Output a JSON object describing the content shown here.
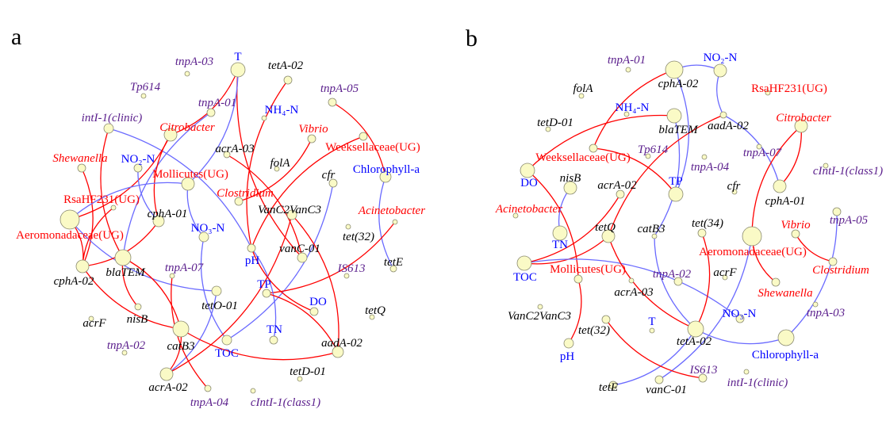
{
  "colors": {
    "taxon": "#ff0000",
    "env": "#0000ff",
    "mge": "#5a1e8c",
    "arg": "#000000",
    "positive_edge": "#ff0000",
    "negative_edge": "#6a6aff",
    "node_fill": "#fafac6"
  },
  "panels": [
    {
      "letter": "a",
      "nodes": [
        {
          "label": "T",
          "type": "env"
        },
        {
          "label": "tnpA-03",
          "type": "mge"
        },
        {
          "label": "tetA-02",
          "type": "arg"
        },
        {
          "label": "Tp614",
          "type": "mge"
        },
        {
          "label": "tnpA-05",
          "type": "mge"
        },
        {
          "label": "tnpA-01",
          "type": "mge"
        },
        {
          "label": "NH₄-N",
          "type": "env"
        },
        {
          "label": "intI-1(clinic)",
          "type": "mge"
        },
        {
          "label": "Citrobacter",
          "type": "taxon"
        },
        {
          "label": "Vibrio",
          "type": "taxon"
        },
        {
          "label": "Weeksellaceae(UG)",
          "type": "taxon"
        },
        {
          "label": "acrA-03",
          "type": "arg"
        },
        {
          "label": "folA",
          "type": "arg"
        },
        {
          "label": "Shewanella",
          "type": "taxon"
        },
        {
          "label": "NO₂-N",
          "type": "env"
        },
        {
          "label": "Chlorophyll-a",
          "type": "env"
        },
        {
          "label": "Mollicutes(UG)",
          "type": "taxon"
        },
        {
          "label": "cfr",
          "type": "arg"
        },
        {
          "label": "Clostridium",
          "type": "taxon"
        },
        {
          "label": "RsaHF231(UG)",
          "type": "taxon"
        },
        {
          "label": "VanC2VanC3",
          "type": "arg"
        },
        {
          "label": "Acinetobacter",
          "type": "taxon"
        },
        {
          "label": "cphA-01",
          "type": "arg"
        },
        {
          "label": "Aeromonadaceae(UG)",
          "type": "taxon"
        },
        {
          "label": "tet(32)",
          "type": "arg"
        },
        {
          "label": "NO₃-N",
          "type": "env"
        },
        {
          "label": "pH",
          "type": "env"
        },
        {
          "label": "vanC-01",
          "type": "arg"
        },
        {
          "label": "blaTEM",
          "type": "arg"
        },
        {
          "label": "cphA-02",
          "type": "arg"
        },
        {
          "label": "tetE",
          "type": "arg"
        },
        {
          "label": "IS613",
          "type": "mge"
        },
        {
          "label": "tnpA-07",
          "type": "mge"
        },
        {
          "label": "TP",
          "type": "env"
        },
        {
          "label": "tetO-01",
          "type": "arg"
        },
        {
          "label": "DO",
          "type": "env"
        },
        {
          "label": "acrF",
          "type": "arg"
        },
        {
          "label": "nisB",
          "type": "arg"
        },
        {
          "label": "tetQ",
          "type": "arg"
        },
        {
          "label": "catB3",
          "type": "arg"
        },
        {
          "label": "TN",
          "type": "env"
        },
        {
          "label": "tnpA-02",
          "type": "mge"
        },
        {
          "label": "TOC",
          "type": "env"
        },
        {
          "label": "aadA-02",
          "type": "arg"
        },
        {
          "label": "tetD-01",
          "type": "arg"
        },
        {
          "label": "acrA-02",
          "type": "arg"
        },
        {
          "label": "tnpA-04",
          "type": "mge"
        },
        {
          "label": "cIntI-1(class1)",
          "type": "mge"
        }
      ],
      "edges": [
        {
          "source": "T",
          "target": "Citrobacter",
          "sign": "positive"
        },
        {
          "source": "T",
          "target": "vanC-01",
          "sign": "positive"
        },
        {
          "source": "T",
          "target": "Mollicutes(UG)",
          "sign": "negative"
        },
        {
          "source": "tetA-02",
          "target": "pH",
          "sign": "positive"
        },
        {
          "source": "tnpA-05",
          "target": "Chlorophyll-a",
          "sign": "positive"
        },
        {
          "source": "tnpA-01",
          "target": "blaTEM",
          "sign": "negative"
        },
        {
          "source": "intI-1(clinic)",
          "target": "pH",
          "sign": "negative"
        },
        {
          "source": "intI-1(clinic)",
          "target": "blaTEM",
          "sign": "positive"
        },
        {
          "source": "Citrobacter",
          "target": "Aeromonadaceae(UG)",
          "sign": "positive"
        },
        {
          "source": "Citrobacter",
          "target": "cphA-01",
          "sign": "positive"
        },
        {
          "source": "Shewanella",
          "target": "cphA-02",
          "sign": "positive"
        },
        {
          "source": "NO₂-N",
          "target": "cphA-01",
          "sign": "negative"
        },
        {
          "source": "Aeromonadaceae(UG)",
          "target": "Mollicutes(UG)",
          "sign": "negative"
        },
        {
          "source": "Aeromonadaceae(UG)",
          "target": "tetO-01",
          "sign": "negative"
        },
        {
          "source": "tetO-01",
          "target": "acrA-02",
          "sign": "negative"
        },
        {
          "source": "NO₃-N",
          "target": "TOC",
          "sign": "negative"
        },
        {
          "source": "cfr",
          "target": "TOC",
          "sign": "negative"
        },
        {
          "source": "Mollicutes(UG)",
          "target": "NO₃-N",
          "sign": "negative"
        },
        {
          "source": "acrA-03",
          "target": "vanC-01",
          "sign": "positive"
        },
        {
          "source": "Clostridium",
          "target": "Vibrio",
          "sign": "positive"
        },
        {
          "source": "VanC2VanC3",
          "target": "aadA-02",
          "sign": "positive"
        },
        {
          "source": "Weeksellaceae(UG)",
          "target": "pH",
          "sign": "positive"
        },
        {
          "source": "VanC2VanC3",
          "target": "acrA-02",
          "sign": "positive"
        },
        {
          "source": "Chlorophyll-a",
          "target": "tetE",
          "sign": "negative"
        },
        {
          "source": "Acinetobacter",
          "target": "TP",
          "sign": "positive"
        },
        {
          "source": "cphA-02",
          "target": "catB3",
          "sign": "positive"
        },
        {
          "source": "blaTEM",
          "target": "catB3",
          "sign": "positive"
        },
        {
          "source": "blaTEM",
          "target": "nisB",
          "sign": "positive"
        },
        {
          "source": "Aeromonadaceae(UG)",
          "target": "cphA-02",
          "sign": "positive"
        },
        {
          "source": "RsaHF231(UG)",
          "target": "cphA-02",
          "sign": "positive"
        },
        {
          "source": "cphA-01",
          "target": "cphA-02",
          "sign": "positive"
        },
        {
          "source": "catB3",
          "target": "aadA-02",
          "sign": "positive"
        },
        {
          "source": "catB3",
          "target": "acrA-02",
          "sign": "positive"
        },
        {
          "source": "tnpA-07",
          "target": "tnpA-04",
          "sign": "positive"
        },
        {
          "source": "pH",
          "target": "TN",
          "sign": "negative"
        },
        {
          "source": "pH",
          "target": "DO",
          "sign": "positive"
        },
        {
          "source": "TP",
          "target": "aadA-02",
          "sign": "positive"
        }
      ]
    },
    {
      "letter": "b",
      "nodes": [
        {
          "label": "tnpA-01",
          "type": "mge"
        },
        {
          "label": "cphA-02",
          "type": "arg"
        },
        {
          "label": "NO₂-N",
          "type": "env"
        },
        {
          "label": "folA",
          "type": "arg"
        },
        {
          "label": "RsaHF231(UG)",
          "type": "taxon"
        },
        {
          "label": "NH₄-N",
          "type": "env"
        },
        {
          "label": "blaTEM",
          "type": "arg"
        },
        {
          "label": "aadA-02",
          "type": "arg"
        },
        {
          "label": "tetD-01",
          "type": "arg"
        },
        {
          "label": "Citrobacter",
          "type": "taxon"
        },
        {
          "label": "Weeksellaceae(UG)",
          "type": "taxon"
        },
        {
          "label": "tnpA-07",
          "type": "mge"
        },
        {
          "label": "Tp614",
          "type": "mge"
        },
        {
          "label": "tnpA-04",
          "type": "mge"
        },
        {
          "label": "cIntI-1(class1)",
          "type": "mge"
        },
        {
          "label": "DO",
          "type": "env"
        },
        {
          "label": "nisB",
          "type": "arg"
        },
        {
          "label": "acrA-02",
          "type": "arg"
        },
        {
          "label": "TP",
          "type": "env"
        },
        {
          "label": "cfr",
          "type": "arg"
        },
        {
          "label": "cphA-01",
          "type": "arg"
        },
        {
          "label": "Acinetobacter",
          "type": "taxon"
        },
        {
          "label": "tnpA-05",
          "type": "mge"
        },
        {
          "label": "tetQ",
          "type": "arg"
        },
        {
          "label": "catB3",
          "type": "arg"
        },
        {
          "label": "tet(34)",
          "type": "arg"
        },
        {
          "label": "Aeromonadaceae(UG)",
          "type": "taxon"
        },
        {
          "label": "Vibrio",
          "type": "taxon"
        },
        {
          "label": "TN",
          "type": "env"
        },
        {
          "label": "TOC",
          "type": "env"
        },
        {
          "label": "Mollicutes(UG)",
          "type": "taxon"
        },
        {
          "label": "Clostridium",
          "type": "taxon"
        },
        {
          "label": "tnpA-02",
          "type": "mge"
        },
        {
          "label": "acrA-03",
          "type": "arg"
        },
        {
          "label": "acrF",
          "type": "arg"
        },
        {
          "label": "Shewanella",
          "type": "taxon"
        },
        {
          "label": "VanC2VanC3",
          "type": "arg"
        },
        {
          "label": "tnpA-03",
          "type": "mge"
        },
        {
          "label": "tet(32)",
          "type": "arg"
        },
        {
          "label": "T",
          "type": "env"
        },
        {
          "label": "NO₃-N",
          "type": "env"
        },
        {
          "label": "tetA-02",
          "type": "arg"
        },
        {
          "label": "Chlorophyll-a",
          "type": "env"
        },
        {
          "label": "pH",
          "type": "env"
        },
        {
          "label": "IS613",
          "type": "mge"
        },
        {
          "label": "tetE",
          "type": "arg"
        },
        {
          "label": "vanC-01",
          "type": "arg"
        },
        {
          "label": "intI-1(clinic)",
          "type": "mge"
        }
      ],
      "edges": [
        {
          "source": "cphA-02",
          "target": "NO₂-N",
          "sign": "negative"
        },
        {
          "source": "NO₂-N",
          "target": "aadA-02",
          "sign": "negative"
        },
        {
          "source": "aadA-02",
          "target": "cphA-01",
          "sign": "negative"
        },
        {
          "source": "cphA-02",
          "target": "Weeksellaceae(UG)",
          "sign": "positive"
        },
        {
          "source": "cphA-02",
          "target": "TP",
          "sign": "negative"
        },
        {
          "source": "blaTEM",
          "target": "DO",
          "sign": "positive"
        },
        {
          "source": "blaTEM",
          "target": "catB3",
          "sign": "negative"
        },
        {
          "source": "catB3",
          "target": "tetA-02",
          "sign": "negative"
        },
        {
          "source": "Weeksellaceae(UG)",
          "target": "TP",
          "sign": "positive"
        },
        {
          "source": "aadA-02",
          "target": "tetQ",
          "sign": "positive"
        },
        {
          "source": "Citrobacter",
          "target": "cphA-01",
          "sign": "positive"
        },
        {
          "source": "Citrobacter",
          "target": "Aeromonadaceae(UG)",
          "sign": "positive"
        },
        {
          "source": "DO",
          "target": "Mollicutes(UG)",
          "sign": "positive"
        },
        {
          "source": "nisB",
          "target": "TN",
          "sign": "negative"
        },
        {
          "source": "acrA-02",
          "target": "TOC",
          "sign": "positive"
        },
        {
          "source": "TOC",
          "target": "tetQ",
          "sign": "positive"
        },
        {
          "source": "TOC",
          "target": "NO₃-N",
          "sign": "negative"
        },
        {
          "source": "tetQ",
          "target": "tetA-02",
          "sign": "positive"
        },
        {
          "source": "tet(34)",
          "target": "tetA-02",
          "sign": "positive"
        },
        {
          "source": "Aeromonadaceae(UG)",
          "target": "Shewanella",
          "sign": "positive"
        },
        {
          "source": "Aeromonadaceae(UG)",
          "target": "vanC-01",
          "sign": "negative"
        },
        {
          "source": "Vibrio",
          "target": "Clostridium",
          "sign": "positive"
        },
        {
          "source": "tnpA-05",
          "target": "Chlorophyll-a",
          "sign": "negative"
        },
        {
          "source": "tetA-02",
          "target": "Chlorophyll-a",
          "sign": "negative"
        },
        {
          "source": "tetA-02",
          "target": "tetE",
          "sign": "negative"
        },
        {
          "source": "tet(32)",
          "target": "IS613",
          "sign": "positive"
        },
        {
          "source": "Mollicutes(UG)",
          "target": "pH",
          "sign": "positive"
        }
      ]
    }
  ]
}
